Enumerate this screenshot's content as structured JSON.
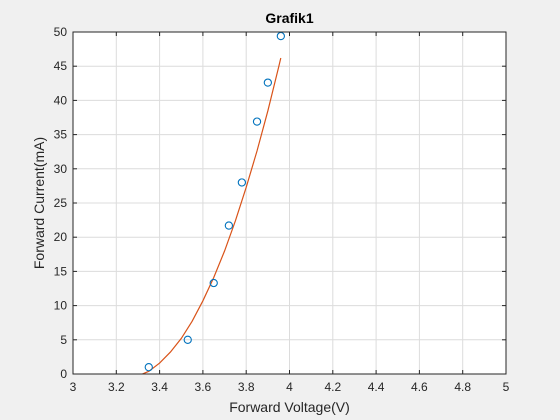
{
  "colors": {
    "figure_bg": "#f0f0f0",
    "axes_bg": "#ffffff",
    "marker": "#0072bd",
    "fit_line": "#d95319",
    "grid": "#dcdcdc",
    "axis": "#262626"
  },
  "chart_data": {
    "type": "scatter",
    "title": "Grafik1",
    "xlabel": "Forward Voltage(V)",
    "ylabel": "Forward Current(mA)",
    "xlim": [
      3,
      5
    ],
    "ylim": [
      0,
      50
    ],
    "xticks": [
      3,
      3.2,
      3.4,
      3.6,
      3.8,
      4,
      4.2,
      4.4,
      4.6,
      4.8,
      5
    ],
    "yticks": [
      0,
      5,
      10,
      15,
      20,
      25,
      30,
      35,
      40,
      45,
      50
    ],
    "grid": true,
    "legend": "none",
    "series": [
      {
        "kind": "scatter",
        "marker": "circle",
        "x": [
          3.35,
          3.53,
          3.65,
          3.72,
          3.78,
          3.85,
          3.9,
          3.96
        ],
        "y": [
          1.0,
          5.0,
          13.3,
          21.7,
          28.0,
          36.9,
          42.6,
          49.4
        ]
      },
      {
        "kind": "line",
        "x": [
          3.32,
          3.35,
          3.4,
          3.45,
          3.5,
          3.55,
          3.6,
          3.65,
          3.7,
          3.75,
          3.8,
          3.85,
          3.9,
          3.95,
          3.96
        ],
        "y": [
          0.0,
          0.4,
          1.6,
          3.2,
          5.2,
          7.7,
          10.7,
          14.1,
          18.0,
          22.4,
          27.3,
          32.6,
          38.5,
          44.9,
          46.2
        ]
      }
    ]
  }
}
